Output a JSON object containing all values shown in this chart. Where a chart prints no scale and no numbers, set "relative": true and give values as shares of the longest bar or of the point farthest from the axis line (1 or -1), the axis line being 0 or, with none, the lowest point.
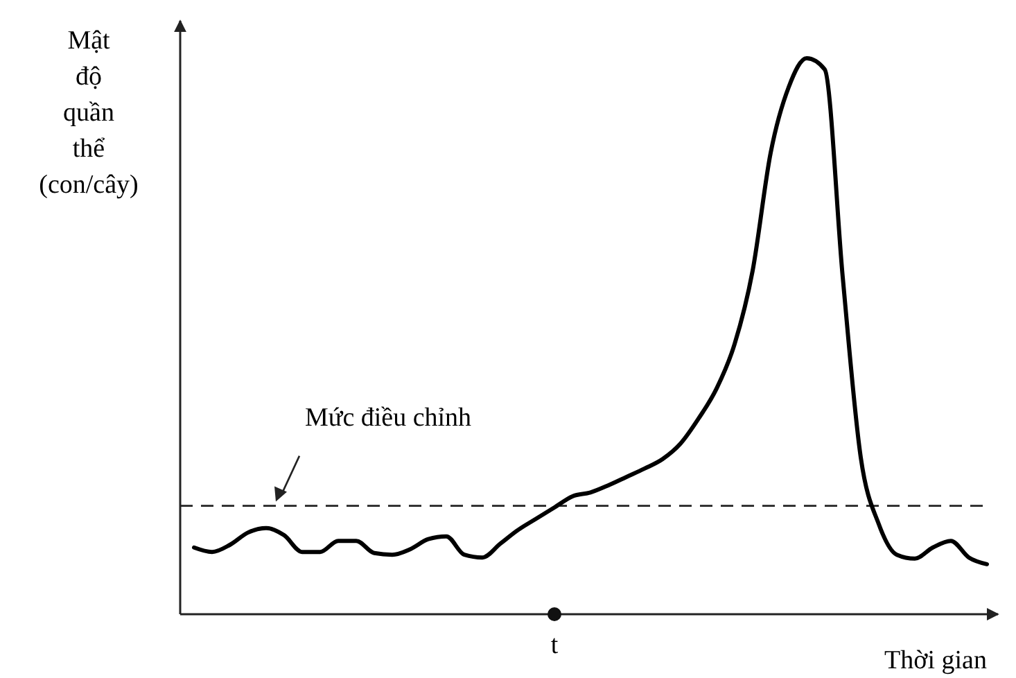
{
  "chart_data": {
    "type": "line",
    "ylabel": "Mật độ quần thể (con/cây)",
    "xlabel": "Thời gian",
    "relative": true,
    "categories": [
      null,
      null,
      null,
      null,
      null,
      null,
      null,
      null,
      null,
      null,
      null,
      null,
      null,
      null,
      null,
      null,
      null,
      null,
      null,
      null,
      null,
      null,
      null,
      null,
      null,
      null,
      null,
      null,
      null,
      null,
      null,
      null,
      null,
      null,
      null,
      null,
      null,
      null,
      null,
      null,
      null,
      null,
      null,
      null,
      null
    ],
    "series": [
      {
        "color": "#000000",
        "values": [
          0.12,
          0.112,
          0.125,
          0.147,
          0.155,
          0.142,
          0.112,
          0.112,
          0.132,
          0.132,
          0.11,
          0.107,
          0.117,
          0.135,
          0.14,
          0.107,
          0.102,
          0.127,
          0.152,
          0.172,
          0.192,
          0.212,
          0.219,
          0.232,
          0.247,
          0.262,
          0.279,
          0.307,
          0.352,
          0.406,
          0.486,
          0.618,
          0.83,
          0.948,
          1,
          0.98,
          0.606,
          0.282,
          0.162,
          0.107,
          0.1,
          0.12,
          0.132,
          0.102,
          0.09
        ]
      }
    ],
    "annotations": [
      "t"
    ],
    "ref_lines": [
      {
        "axis": "y",
        "value": 0.195,
        "label": "Mức điều chỉnh",
        "line_style": "dashed"
      }
    ]
  }
}
